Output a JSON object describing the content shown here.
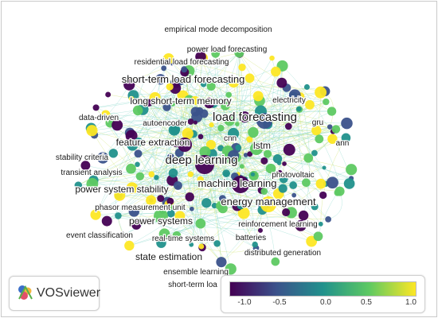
{
  "app": {
    "logo_label": "VOSviewer",
    "logo_icon": "vosviewer-logo-icon"
  },
  "colors": {
    "scale": [
      "#440154",
      "#3b528b",
      "#21918c",
      "#5ec962",
      "#fde725"
    ],
    "edge": "#7fd6c6",
    "label": "#1a1a1a"
  },
  "legend": {
    "ticks": [
      "-1.0",
      "-0.5",
      "0.0",
      "0.5",
      "1.0"
    ],
    "min": -1.2,
    "max": 1.15
  },
  "network": {
    "labels": [
      {
        "text": "empirical mode decomposition",
        "size": "sm"
      },
      {
        "text": "power load forecasting",
        "size": "sm"
      },
      {
        "text": "residential load forecasting",
        "size": "sm"
      },
      {
        "text": "short-term load forecasting",
        "size": "lg"
      },
      {
        "text": "long short-term memory",
        "size": "md"
      },
      {
        "text": "electricity",
        "size": "sm"
      },
      {
        "text": "data-driven",
        "size": "sm"
      },
      {
        "text": "autoencoder",
        "size": "sm"
      },
      {
        "text": "load forecasting",
        "size": "xl"
      },
      {
        "text": "gru",
        "size": "sm"
      },
      {
        "text": "cnn",
        "size": "sm"
      },
      {
        "text": "lstm",
        "size": "md"
      },
      {
        "text": "ann",
        "size": "sm"
      },
      {
        "text": "feature extraction",
        "size": "md"
      },
      {
        "text": "stability criteria",
        "size": "sm"
      },
      {
        "text": "deep learning",
        "size": "xl"
      },
      {
        "text": "transient analysis",
        "size": "sm"
      },
      {
        "text": "photovoltaic",
        "size": "sm"
      },
      {
        "text": "machine learning",
        "size": "lg"
      },
      {
        "text": "power system stability",
        "size": "md"
      },
      {
        "text": "energy management",
        "size": "lg"
      },
      {
        "text": "phasor measurement unit",
        "size": "sm"
      },
      {
        "text": "power systems",
        "size": "md"
      },
      {
        "text": "reinforcement learning",
        "size": "sm"
      },
      {
        "text": "event classification",
        "size": "sm"
      },
      {
        "text": "real-time systems",
        "size": "sm"
      },
      {
        "text": "batteries",
        "size": "sm"
      },
      {
        "text": "distributed generation",
        "size": "sm"
      },
      {
        "text": "state estimation",
        "size": "md"
      },
      {
        "text": "ensemble learning",
        "size": "sm"
      },
      {
        "text": "short-term loa",
        "size": "sm"
      }
    ]
  }
}
